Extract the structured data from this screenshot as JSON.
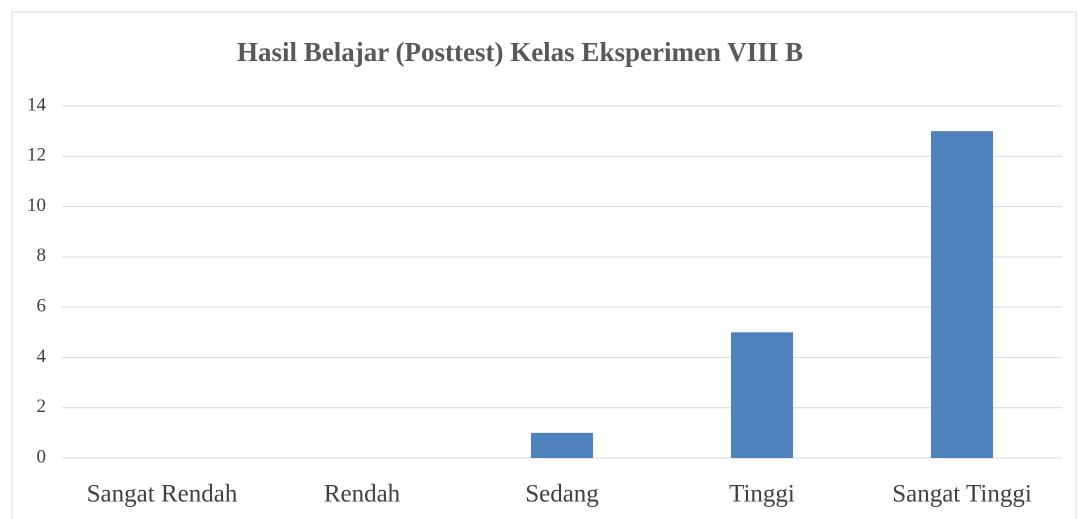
{
  "chart_data": {
    "type": "bar",
    "title": "Hasil Belajar (Posttest) Kelas Eksperimen VIII B",
    "categories": [
      "Sangat Rendah",
      "Rendah",
      "Sedang",
      "Tinggi",
      "Sangat Tinggi"
    ],
    "values": [
      0,
      0,
      1,
      5,
      13
    ],
    "color": "#4f81bd",
    "ylim": [
      0,
      14
    ],
    "yticks": [
      0,
      2,
      4,
      6,
      8,
      10,
      12,
      14
    ],
    "grid": true
  }
}
